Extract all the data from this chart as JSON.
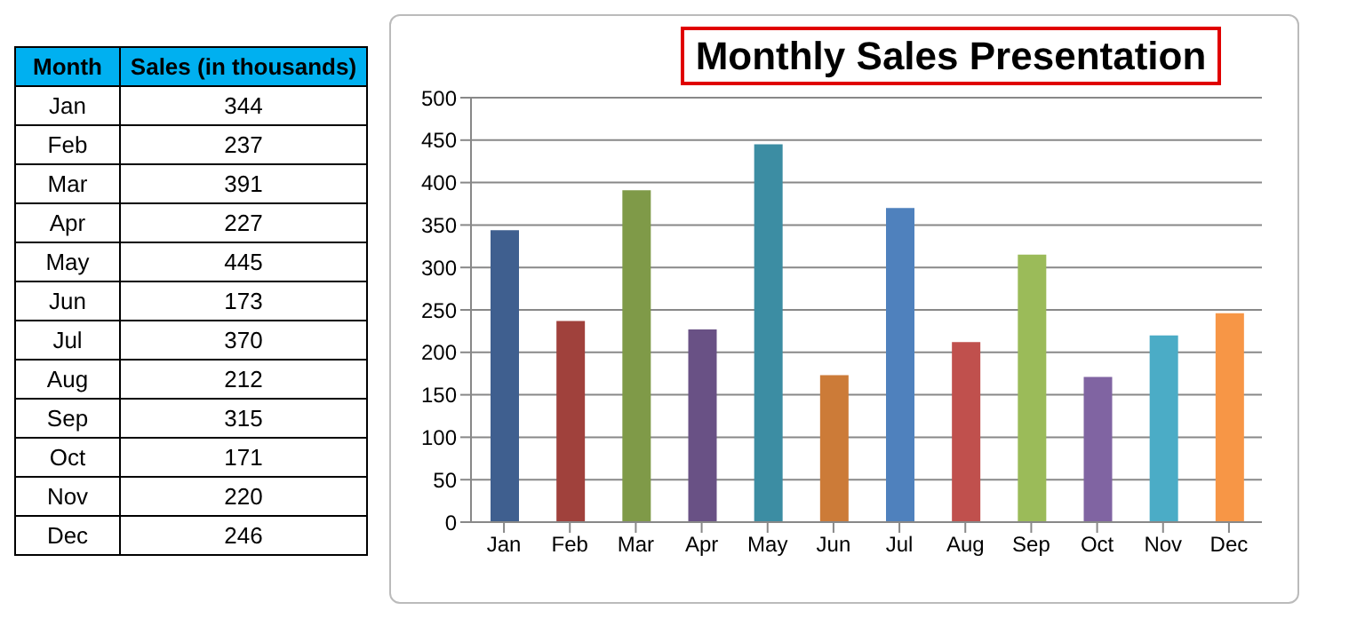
{
  "chart_data": [
    {
      "type": "other",
      "annotations": [
        "Month",
        "Sales (in thousands)",
        "Jan",
        "344",
        "Feb",
        "237",
        "Mar",
        "391",
        "Apr",
        "227",
        "May",
        "445",
        "Jun",
        "173",
        "Jul",
        "370",
        "Aug",
        "212",
        "Sep",
        "315",
        "Oct",
        "171",
        "Nov",
        "220",
        "Dec",
        "246"
      ]
    },
    {
      "type": "bar",
      "title": "Monthly Sales Presentation",
      "categories": [
        "Jan",
        "Feb",
        "Mar",
        "Apr",
        "May",
        "Jun",
        "Jul",
        "Aug",
        "Sep",
        "Oct",
        "Nov",
        "Dec"
      ],
      "values": [
        344,
        237,
        391,
        227,
        445,
        173,
        370,
        212,
        315,
        171,
        220,
        246
      ],
      "colors": [
        "#3f5f8f",
        "#a0413c",
        "#7f9a48",
        "#695185",
        "#3c8da3",
        "#cc7b38",
        "#4f81bd",
        "#c0504d",
        "#9bbb59",
        "#8064a2",
        "#4bacc6",
        "#f79646"
      ],
      "ylim": [
        0,
        500
      ],
      "yticks": [
        0,
        50,
        100,
        150,
        200,
        250,
        300,
        350,
        400,
        450,
        500
      ],
      "grid": "y"
    }
  ]
}
